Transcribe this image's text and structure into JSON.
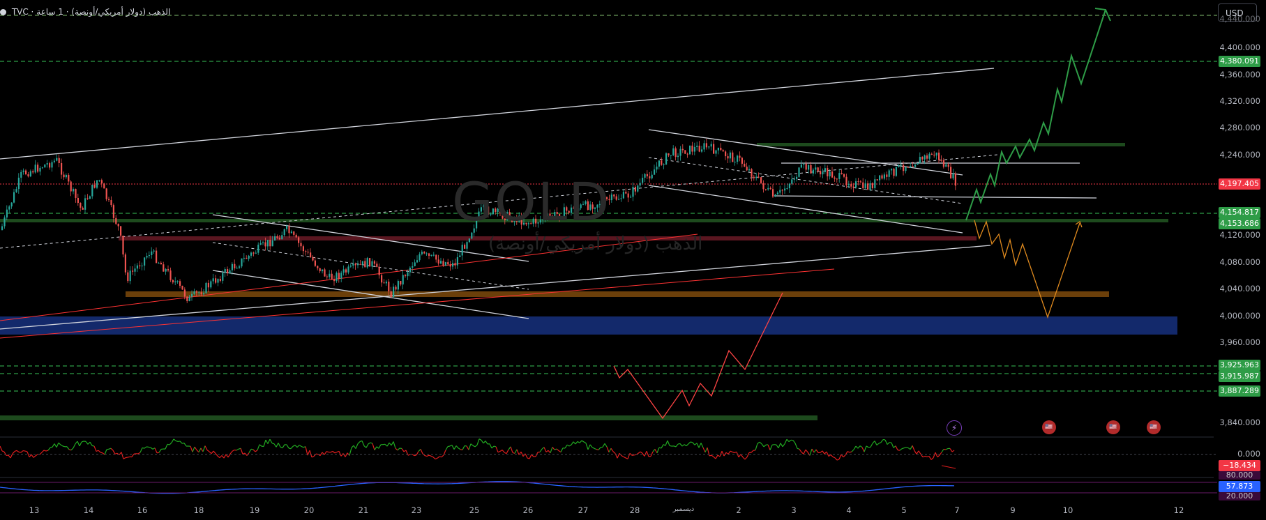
{
  "header": {
    "symbol_line": "TVC · الذهب (دولار أمريكي/أونصة) · 1 ساعة"
  },
  "watermark": {
    "main": "GOLD",
    "sub": "الذهب (دولار أمريكي/أونصة)"
  },
  "currency_button": "USD",
  "price_axis": {
    "ticks": [
      "4,400.000",
      "4,360.000",
      "4,320.000",
      "4,280.000",
      "4,240.000",
      "4,120.000",
      "4,080.000",
      "4,040.000",
      "4,000.000",
      "3,960.000",
      "3,840.000"
    ],
    "top_partial": "4,440.000",
    "badges": [
      {
        "label": "4,380.091",
        "color": "#2e9c47"
      },
      {
        "label": "4,197.405",
        "color": "#f23645"
      },
      {
        "label": "4,154.817",
        "color": "#2e9c47"
      },
      {
        "label": "4,153.686",
        "color": "#2e9c47"
      },
      {
        "label": "3,925.963",
        "color": "#2e9c47"
      },
      {
        "label": "3,915.987",
        "color": "#2e9c47"
      },
      {
        "label": "3,887.289",
        "color": "#2e9c47"
      }
    ]
  },
  "indicator_axis": {
    "zero": "0.000",
    "value": "−18.434",
    "value_color": "#f23645",
    "rsi_top": "80.000",
    "rsi_value": "57.873",
    "rsi_value_color": "#2962ff",
    "rsi_bottom": "20.000"
  },
  "time_axis": {
    "labels": [
      "13",
      "14",
      "16",
      "18",
      "19",
      "20",
      "21",
      "23",
      "25",
      "26",
      "27",
      "28",
      "ديسمبر",
      "2",
      "3",
      "4",
      "5",
      "7",
      "9",
      "10",
      "12"
    ]
  },
  "events": [
    {
      "icon": "lightning-icon",
      "glyph": "⚡",
      "color": "#7b3fbf"
    },
    {
      "icon": "us-flag-icon",
      "glyph": "●",
      "color": "#c0392b"
    },
    {
      "icon": "us-flag-icon",
      "glyph": "●",
      "color": "#c0392b"
    },
    {
      "icon": "us-flag-icon",
      "glyph": "●",
      "color": "#c0392b"
    }
  ],
  "colors": {
    "up": "#26a69a",
    "down": "#ef5350",
    "accent_green": "#2e9c47",
    "accent_red": "#f23645"
  }
}
